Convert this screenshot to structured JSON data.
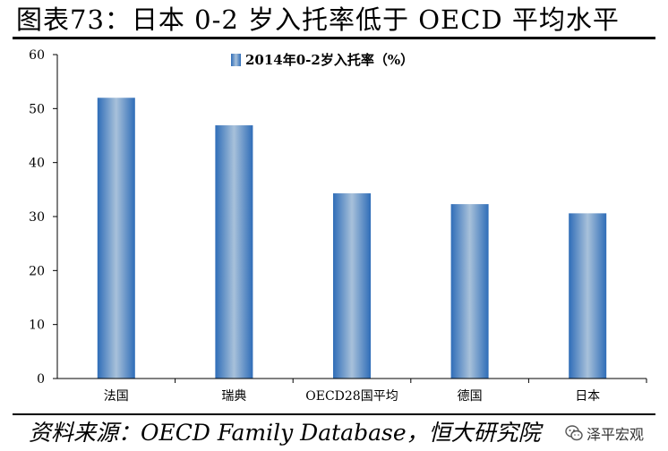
{
  "header": {
    "title": "图表73：日本 0-2 岁入托率低于 OECD 平均水平"
  },
  "footer": {
    "source": "资料来源：OECD Family Database，恒大研究院",
    "watermark": "泽平宏观",
    "watermark_icon": "wechat-icon"
  },
  "chart_data": {
    "type": "bar",
    "categories": [
      "法国",
      "瑞典",
      "OECD28国平均",
      "德国",
      "日本"
    ],
    "series": [
      {
        "name": "2014年0-2岁入托率（%）",
        "values": [
          52.0,
          46.9,
          34.3,
          32.3,
          30.6
        ]
      }
    ],
    "yticks": [
      "0",
      "10",
      "20",
      "30",
      "40",
      "50",
      "60"
    ],
    "ylim": [
      0,
      60
    ],
    "grid": false,
    "legend_position": "top-center",
    "colors": {
      "bar_edge": "#2f6db8",
      "bar_center": "#a8c1da",
      "axis": "#000000"
    }
  }
}
